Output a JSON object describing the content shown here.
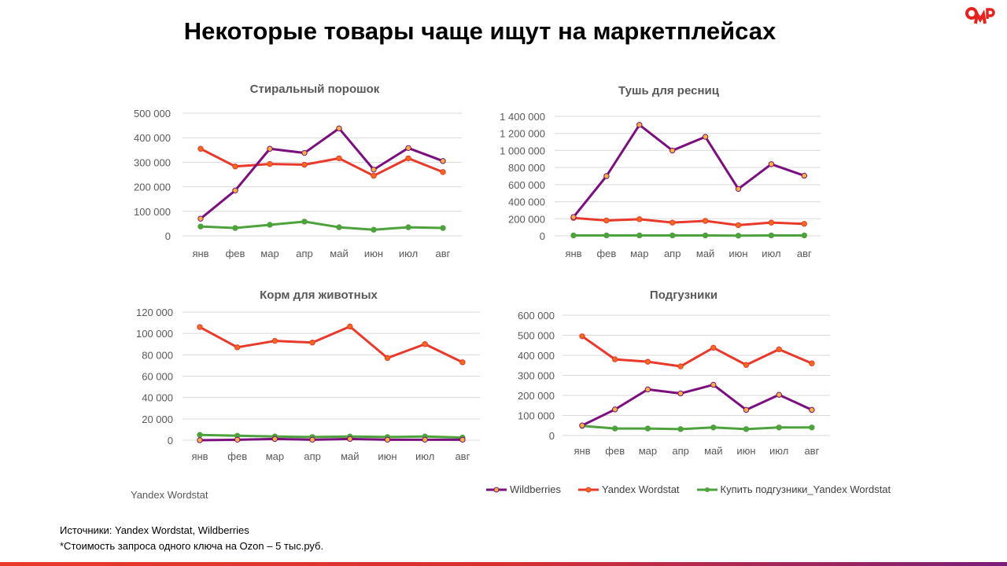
{
  "title": "Некоторые товары чаще ищут на маркетплейсах",
  "logo_text": "OMD",
  "source_label": "Yandex Wordstat",
  "notes": [
    "Источники: Yandex Wordstat, Wildberries",
    "*Стоимость запроса одного ключа на Ozon – 5 тыс.руб."
  ],
  "legend": [
    {
      "name": "Wildberries",
      "color": "#7b0f7e",
      "marker": "#fbb33c"
    },
    {
      "name": "Yandex Wordstat",
      "color": "#e8392b",
      "marker": "#f26b1d"
    },
    {
      "name": "Купить подгузники_Yandex Wordstat",
      "color": "#4ea23d",
      "marker": "#4ea23d"
    }
  ],
  "chart_data": [
    {
      "type": "line",
      "title": "Стиральный порошок",
      "categories": [
        "янв",
        "фев",
        "мар",
        "апр",
        "май",
        "июн",
        "июл",
        "авг"
      ],
      "ylim": [
        0,
        500000
      ],
      "yticks": [
        "0",
        "100 000",
        "200 000",
        "300 000",
        "400 000",
        "500 000"
      ],
      "series": [
        {
          "name": "Wildberries",
          "values": [
            70000,
            185000,
            355000,
            338000,
            438000,
            270000,
            358000,
            305000
          ]
        },
        {
          "name": "Yandex Wordstat",
          "values": [
            355000,
            283000,
            293000,
            290000,
            316000,
            245000,
            316000,
            260000
          ]
        },
        {
          "name": "Купить подгузники_Yandex Wordstat",
          "values": [
            38000,
            32000,
            45000,
            58000,
            35000,
            25000,
            35000,
            32000
          ]
        }
      ]
    },
    {
      "type": "line",
      "title": "Тушь для ресниц",
      "categories": [
        "янв",
        "фев",
        "мар",
        "апр",
        "май",
        "июн",
        "июл",
        "авг"
      ],
      "ylim": [
        0,
        1400000
      ],
      "yticks": [
        "0",
        "200 000",
        "400 000",
        "600 000",
        "800 000",
        "1 000 000",
        "1 200 000",
        "1 400 000"
      ],
      "series": [
        {
          "name": "Wildberries",
          "values": [
            220000,
            700000,
            1300000,
            1000000,
            1160000,
            550000,
            840000,
            705000
          ]
        },
        {
          "name": "Yandex Wordstat",
          "values": [
            210000,
            180000,
            195000,
            155000,
            175000,
            125000,
            155000,
            140000
          ]
        },
        {
          "name": "Купить подгузники_Yandex Wordstat",
          "values": [
            5000,
            5000,
            5000,
            5000,
            5000,
            2000,
            5000,
            5000
          ]
        }
      ]
    },
    {
      "type": "line",
      "title": "Корм для животных",
      "categories": [
        "янв",
        "фев",
        "мар",
        "апр",
        "май",
        "июн",
        "июл",
        "авг"
      ],
      "ylim": [
        0,
        120000
      ],
      "yticks": [
        "0",
        "20 000",
        "40 000",
        "60 000",
        "80 000",
        "100 000",
        "120 000"
      ],
      "series": [
        {
          "name": "Wildberries",
          "values": [
            0,
            500,
            1200,
            500,
            1200,
            500,
            500,
            500
          ]
        },
        {
          "name": "Yandex Wordstat",
          "values": [
            106000,
            87000,
            93000,
            91500,
            106500,
            77000,
            90000,
            73000
          ]
        },
        {
          "name": "Купить подгузники_Yandex Wordstat",
          "values": [
            5000,
            4200,
            3500,
            3000,
            3500,
            3000,
            3500,
            2500
          ]
        }
      ]
    },
    {
      "type": "line",
      "title": "Подгузники",
      "categories": [
        "янв",
        "фев",
        "мар",
        "апр",
        "май",
        "июн",
        "июл",
        "авг"
      ],
      "ylim": [
        0,
        600000
      ],
      "yticks": [
        "0",
        "100 000",
        "200 000",
        "300 000",
        "400 000",
        "500 000",
        "600 000"
      ],
      "series": [
        {
          "name": "Wildberries",
          "values": [
            50000,
            130000,
            230000,
            210000,
            253000,
            128000,
            203000,
            128000
          ]
        },
        {
          "name": "Yandex Wordstat",
          "values": [
            495000,
            380000,
            368000,
            345000,
            438000,
            352000,
            430000,
            360000
          ]
        },
        {
          "name": "Купить подгузники_Yandex Wordstat",
          "values": [
            48000,
            35000,
            35000,
            32000,
            40000,
            32000,
            40000,
            40000
          ]
        }
      ]
    }
  ]
}
